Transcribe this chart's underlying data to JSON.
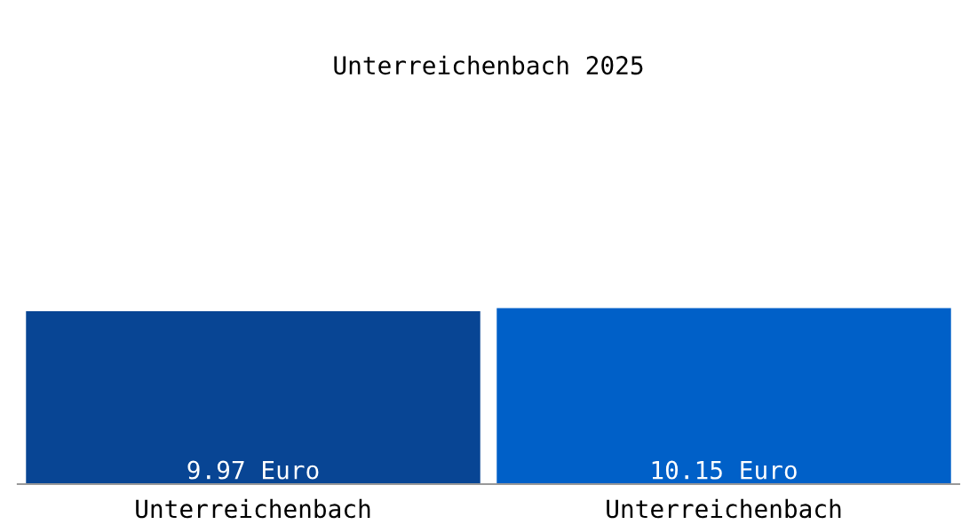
{
  "chart_data": {
    "type": "bar",
    "title": "Unterreichenbach 2025",
    "categories": [
      "Unterreichenbach",
      "Unterreichenbach"
    ],
    "values": [
      9.97,
      10.15
    ],
    "colors": [
      "#084594",
      "#0060c8"
    ],
    "value_labels": [
      "9.97 Euro",
      "10.15 Euro"
    ],
    "grid": false,
    "legend": false
  }
}
